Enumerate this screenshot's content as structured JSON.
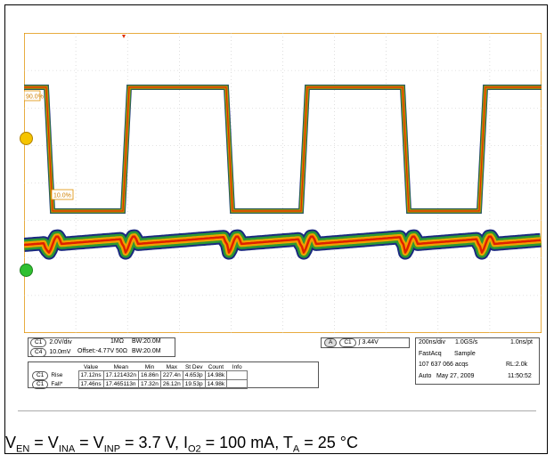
{
  "scope": {
    "ch1_scale": "2.0V/div",
    "ch1_impedance": "1MΩ",
    "ch1_bw": "BW:20.0M",
    "ch4_scale": "10.0mV",
    "ch4_offset": "Offset:-4.77V",
    "ch4_impedance": "50Ω",
    "ch4_bw": "BW:20.0M",
    "ch1_tag": "C1",
    "ch4_tag": "C4",
    "trigger_a": "A",
    "trigger_source": "C1",
    "trigger_level": "3.44V",
    "timebase": "200ns/div",
    "sample_rate": "1.0GS/s",
    "resolution": "1.0ns/pt",
    "acq_mode": "FastAcq",
    "acq_type": "Sample",
    "acq_count": "107 637 066 acqs",
    "record_length": "RL:2.0k",
    "trig_mode": "Auto",
    "date": "May 27, 2009",
    "time": "11:50:52",
    "label_90": "90.0%",
    "label_10": "10.0%",
    "trace_color_1": "#f5a200",
    "trace_color_4": "#2a8a2a"
  },
  "measurements": {
    "headers": [
      "Value",
      "Mean",
      "Min",
      "Max",
      "St Dev",
      "Count",
      "Info"
    ],
    "rows": [
      {
        "ch": "C1",
        "name": "Rise",
        "value": "17.12ns",
        "mean": "17.121432n",
        "min": "16.86n",
        "max": "227.4n",
        "stdev": "4.653p",
        "count": "14.98k",
        "info": ""
      },
      {
        "ch": "C1",
        "name": "Fall*",
        "value": "17.46ns",
        "mean": "17.465113n",
        "min": "17.32n",
        "max": "26.12n",
        "stdev": "19.53p",
        "count": "14.98k",
        "info": ""
      }
    ]
  },
  "caption": {
    "v_en": "V",
    "en_sub": "EN",
    "eq1": " = V",
    "ina_sub": "INA",
    "eq2": " = V",
    "inp_sub": "INP",
    "v_val": " = 3.7 V, I",
    "o2_sub": "O2",
    "i_val": " = 100 mA, T",
    "a_sub": "A",
    "t_val": " = 25 °C"
  }
}
